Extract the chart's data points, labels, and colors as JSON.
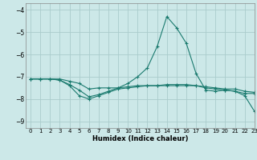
{
  "xlabel": "Humidex (Indice chaleur)",
  "ylabel": "",
  "background_color": "#cce8e8",
  "grid_color": "#aacccc",
  "line_color": "#1a7a6e",
  "xlim": [
    -0.5,
    23
  ],
  "ylim": [
    -9.3,
    -3.7
  ],
  "yticks": [
    -9,
    -8,
    -7,
    -6,
    -5,
    -4
  ],
  "xticks": [
    0,
    1,
    2,
    3,
    4,
    5,
    6,
    7,
    8,
    9,
    10,
    11,
    12,
    13,
    14,
    15,
    16,
    17,
    18,
    19,
    20,
    21,
    22,
    23
  ],
  "line1_x": [
    0,
    1,
    2,
    3,
    4,
    5,
    6,
    7,
    8,
    9,
    10,
    11,
    12,
    13,
    14,
    15,
    16,
    17,
    18,
    19,
    20,
    21,
    22,
    23
  ],
  "line1_y": [
    -7.1,
    -7.1,
    -7.1,
    -7.1,
    -7.2,
    -7.3,
    -7.55,
    -7.5,
    -7.5,
    -7.5,
    -7.45,
    -7.4,
    -7.4,
    -7.4,
    -7.4,
    -7.4,
    -7.4,
    -7.4,
    -7.45,
    -7.5,
    -7.55,
    -7.55,
    -7.65,
    -7.7
  ],
  "line2_x": [
    0,
    1,
    2,
    3,
    4,
    5,
    6,
    7,
    8,
    9,
    10,
    11,
    12,
    13,
    14,
    15,
    16,
    17,
    18,
    19,
    20,
    21,
    22,
    23
  ],
  "line2_y": [
    -7.1,
    -7.1,
    -7.1,
    -7.15,
    -7.4,
    -7.85,
    -8.0,
    -7.85,
    -7.7,
    -7.55,
    -7.5,
    -7.45,
    -7.4,
    -7.4,
    -7.35,
    -7.35,
    -7.35,
    -7.4,
    -7.5,
    -7.55,
    -7.6,
    -7.65,
    -7.75,
    -7.75
  ],
  "line3_x": [
    0,
    1,
    2,
    3,
    4,
    5,
    6,
    7,
    8,
    9,
    10,
    11,
    12,
    13,
    14,
    15,
    16,
    17,
    18,
    19,
    20,
    21,
    22,
    23
  ],
  "line3_y": [
    -7.1,
    -7.1,
    -7.1,
    -7.15,
    -7.35,
    -7.6,
    -7.9,
    -7.8,
    -7.65,
    -7.5,
    -7.3,
    -7.0,
    -6.6,
    -5.65,
    -4.3,
    -4.8,
    -5.5,
    -6.85,
    -7.6,
    -7.65,
    -7.6,
    -7.65,
    -7.85,
    -8.55
  ]
}
